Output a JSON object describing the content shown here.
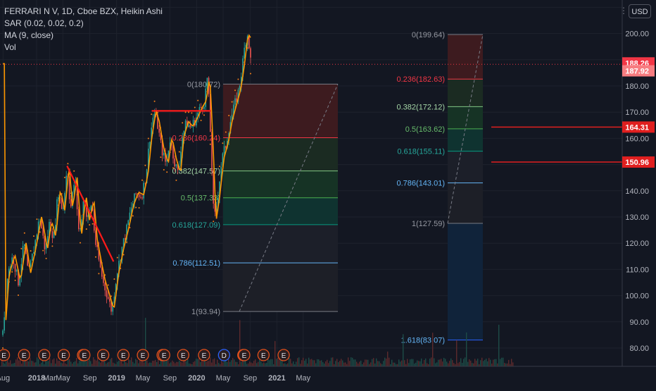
{
  "legend": {
    "title": "FERRARI N V, 1D, Cboe BZX, Heikin Ashi",
    "sar": "SAR (0.02, 0.02, 0.2)",
    "ma": "MA (9, close)",
    "vol": "Vol"
  },
  "currency_button": "USD",
  "colors": {
    "background": "#131722",
    "up": "#26a69a",
    "down": "#ef5350",
    "sar": "#f57f17",
    "ma": "#ff9800",
    "trendline": "#ff1a1a",
    "price_line": "#f23645"
  },
  "chart_data": {
    "type": "candlestick",
    "y_axis": {
      "ticks": [
        "80.00",
        "90.00",
        "100.00",
        "110.00",
        "120.00",
        "130.00",
        "140.00",
        "150.00",
        "160.00",
        "170.00",
        "180.00",
        "190.00",
        "200.00"
      ],
      "range": [
        77,
        214
      ]
    },
    "x_axis": {
      "labels": [
        "Aug",
        "2018",
        "Mar",
        "May",
        "Sep",
        "2019",
        "May",
        "Sep",
        "2020",
        "May",
        "Sep",
        "2021",
        "May"
      ]
    },
    "last_price": "188.26",
    "price_tags": [
      "188.26",
      "187.92",
      "164.31",
      "150.96"
    ],
    "horizontal_lines": [
      164.31,
      150.96
    ],
    "fib_retracement_1": {
      "levels": [
        {
          "label": "0(180.72)",
          "value": 180.72
        },
        {
          "label": "0.236(160.24)",
          "value": 160.24
        },
        {
          "label": "0.382(147.57)",
          "value": 147.57
        },
        {
          "label": "0.5(137.33)",
          "value": 137.33
        },
        {
          "label": "0.618(127.09)",
          "value": 127.09
        },
        {
          "label": "0.786(112.51)",
          "value": 112.51
        },
        {
          "label": "1(93.94)",
          "value": 93.94
        }
      ]
    },
    "fib_retracement_2": {
      "levels": [
        {
          "label": "0(199.64)",
          "value": 199.64
        },
        {
          "label": "0.236(182.63)",
          "value": 182.63
        },
        {
          "label": "0.382(172.12)",
          "value": 172.12
        },
        {
          "label": "0.5(163.62)",
          "value": 163.62
        },
        {
          "label": "0.618(155.11)",
          "value": 155.11
        },
        {
          "label": "0.786(143.01)",
          "value": 143.01
        },
        {
          "label": "1(127.59)",
          "value": 127.59
        },
        {
          "label": "1.618(83.07)",
          "value": 83.07
        }
      ]
    },
    "trendlines": [
      {
        "from": [
          "2018-05-20",
          149.5
        ],
        "to": [
          "2018-12-18",
          113.0
        ]
      },
      {
        "from": [
          "2019-06-10",
          170.5
        ],
        "to": [
          "2020-03-05",
          170.5
        ]
      }
    ],
    "event_markers": [
      "E",
      "E",
      "E",
      "E",
      "E",
      "E",
      "E",
      "E",
      "E",
      "E",
      "E",
      "E",
      "E",
      "D",
      "E",
      "E",
      "E",
      "E"
    ],
    "price_path": [
      [
        "2017-07-31",
        85
      ],
      [
        "2017-08-20",
        108
      ],
      [
        "2017-09-15",
        115
      ],
      [
        "2017-10-10",
        105
      ],
      [
        "2017-11-05",
        120
      ],
      [
        "2017-11-25",
        108
      ],
      [
        "2017-12-20",
        118
      ],
      [
        "2018-01-15",
        130
      ],
      [
        "2018-02-10",
        117
      ],
      [
        "2018-03-01",
        128
      ],
      [
        "2018-03-20",
        122
      ],
      [
        "2018-04-10",
        140
      ],
      [
        "2018-04-30",
        132
      ],
      [
        "2018-05-20",
        149
      ],
      [
        "2018-06-05",
        133
      ],
      [
        "2018-06-25",
        145
      ],
      [
        "2018-07-15",
        122
      ],
      [
        "2018-08-05",
        138
      ],
      [
        "2018-08-20",
        128
      ],
      [
        "2018-09-10",
        136
      ],
      [
        "2018-09-25",
        121
      ],
      [
        "2018-10-15",
        112
      ],
      [
        "2018-11-01",
        105
      ],
      [
        "2018-11-20",
        100
      ],
      [
        "2018-12-10",
        94
      ],
      [
        "2019-01-01",
        108
      ],
      [
        "2019-01-25",
        118
      ],
      [
        "2019-02-15",
        125
      ],
      [
        "2019-03-10",
        134
      ],
      [
        "2019-04-01",
        139
      ],
      [
        "2019-04-25",
        138
      ],
      [
        "2019-05-15",
        146
      ],
      [
        "2019-06-01",
        160
      ],
      [
        "2019-06-20",
        170
      ],
      [
        "2019-07-05",
        166
      ],
      [
        "2019-07-25",
        156
      ],
      [
        "2019-08-15",
        150
      ],
      [
        "2019-09-01",
        160
      ],
      [
        "2019-09-20",
        152
      ],
      [
        "2019-10-10",
        146
      ],
      [
        "2019-10-25",
        160
      ],
      [
        "2019-11-15",
        166
      ],
      [
        "2019-12-05",
        164
      ],
      [
        "2019-12-25",
        167
      ],
      [
        "2020-01-15",
        171
      ],
      [
        "2020-02-05",
        174
      ],
      [
        "2020-02-20",
        184
      ],
      [
        "2020-03-05",
        160
      ],
      [
        "2020-03-20",
        128
      ],
      [
        "2020-04-05",
        137
      ],
      [
        "2020-04-25",
        152
      ],
      [
        "2020-05-15",
        158
      ],
      [
        "2020-06-01",
        166
      ],
      [
        "2020-06-20",
        172
      ],
      [
        "2020-07-10",
        178
      ],
      [
        "2020-07-25",
        186
      ],
      [
        "2020-08-10",
        197
      ],
      [
        "2020-08-22",
        200
      ],
      [
        "2020-09-05",
        188
      ]
    ]
  }
}
